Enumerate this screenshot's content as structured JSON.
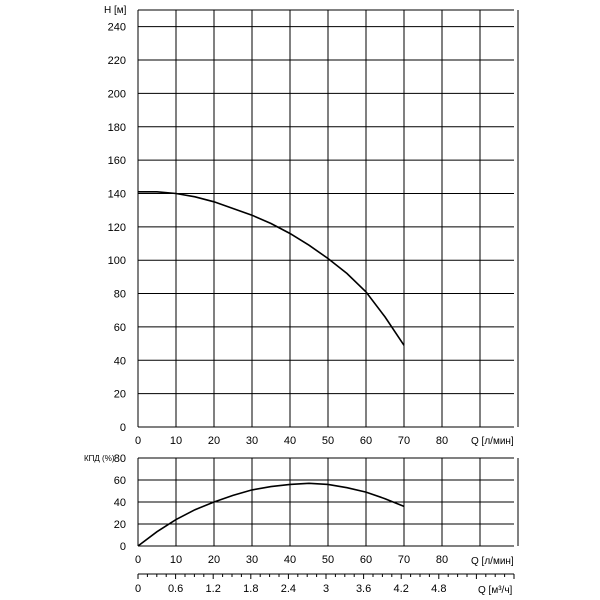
{
  "chart_data": [
    {
      "type": "line",
      "ylabel": "H [м]",
      "xlabel": "Q [л/мин]",
      "xlim": [
        0,
        100
      ],
      "ylim": [
        0,
        250
      ],
      "x_ticks": [
        0,
        10,
        20,
        30,
        40,
        50,
        60,
        70,
        80
      ],
      "y_ticks": [
        0,
        20,
        40,
        60,
        80,
        100,
        120,
        140,
        160,
        180,
        200,
        220,
        240
      ],
      "grid": true,
      "series": [
        {
          "x": [
            0,
            5,
            10,
            15,
            20,
            25,
            30,
            35,
            40,
            45,
            50,
            55,
            60,
            65,
            70
          ],
          "y": [
            141,
            141,
            140,
            138,
            135,
            131,
            127,
            122,
            116,
            109,
            101,
            92,
            81,
            66,
            49
          ]
        }
      ]
    },
    {
      "type": "line",
      "ylabel": "КПД (%)",
      "xlabel": "Q [л/мин]",
      "xlim": [
        0,
        100
      ],
      "ylim": [
        0,
        80
      ],
      "x_ticks": [
        0,
        10,
        20,
        30,
        40,
        50,
        60,
        70,
        80
      ],
      "y_ticks": [
        0,
        20,
        40,
        60,
        80
      ],
      "grid": true,
      "series": [
        {
          "x": [
            0,
            5,
            10,
            15,
            20,
            25,
            30,
            35,
            40,
            45,
            50,
            55,
            60,
            65,
            70
          ],
          "y": [
            0,
            13,
            24,
            33,
            40,
            46,
            51,
            54,
            56,
            57,
            56,
            53,
            49,
            43,
            36
          ]
        }
      ]
    },
    {
      "type": "axis",
      "xlabel": "Q [м³/ч]",
      "x_ticks": [
        "0",
        "0.6",
        "1.2",
        "1.8",
        "2.4",
        "3",
        "3.6",
        "4.2",
        "4.8"
      ],
      "xlim": [
        0,
        6
      ]
    }
  ]
}
